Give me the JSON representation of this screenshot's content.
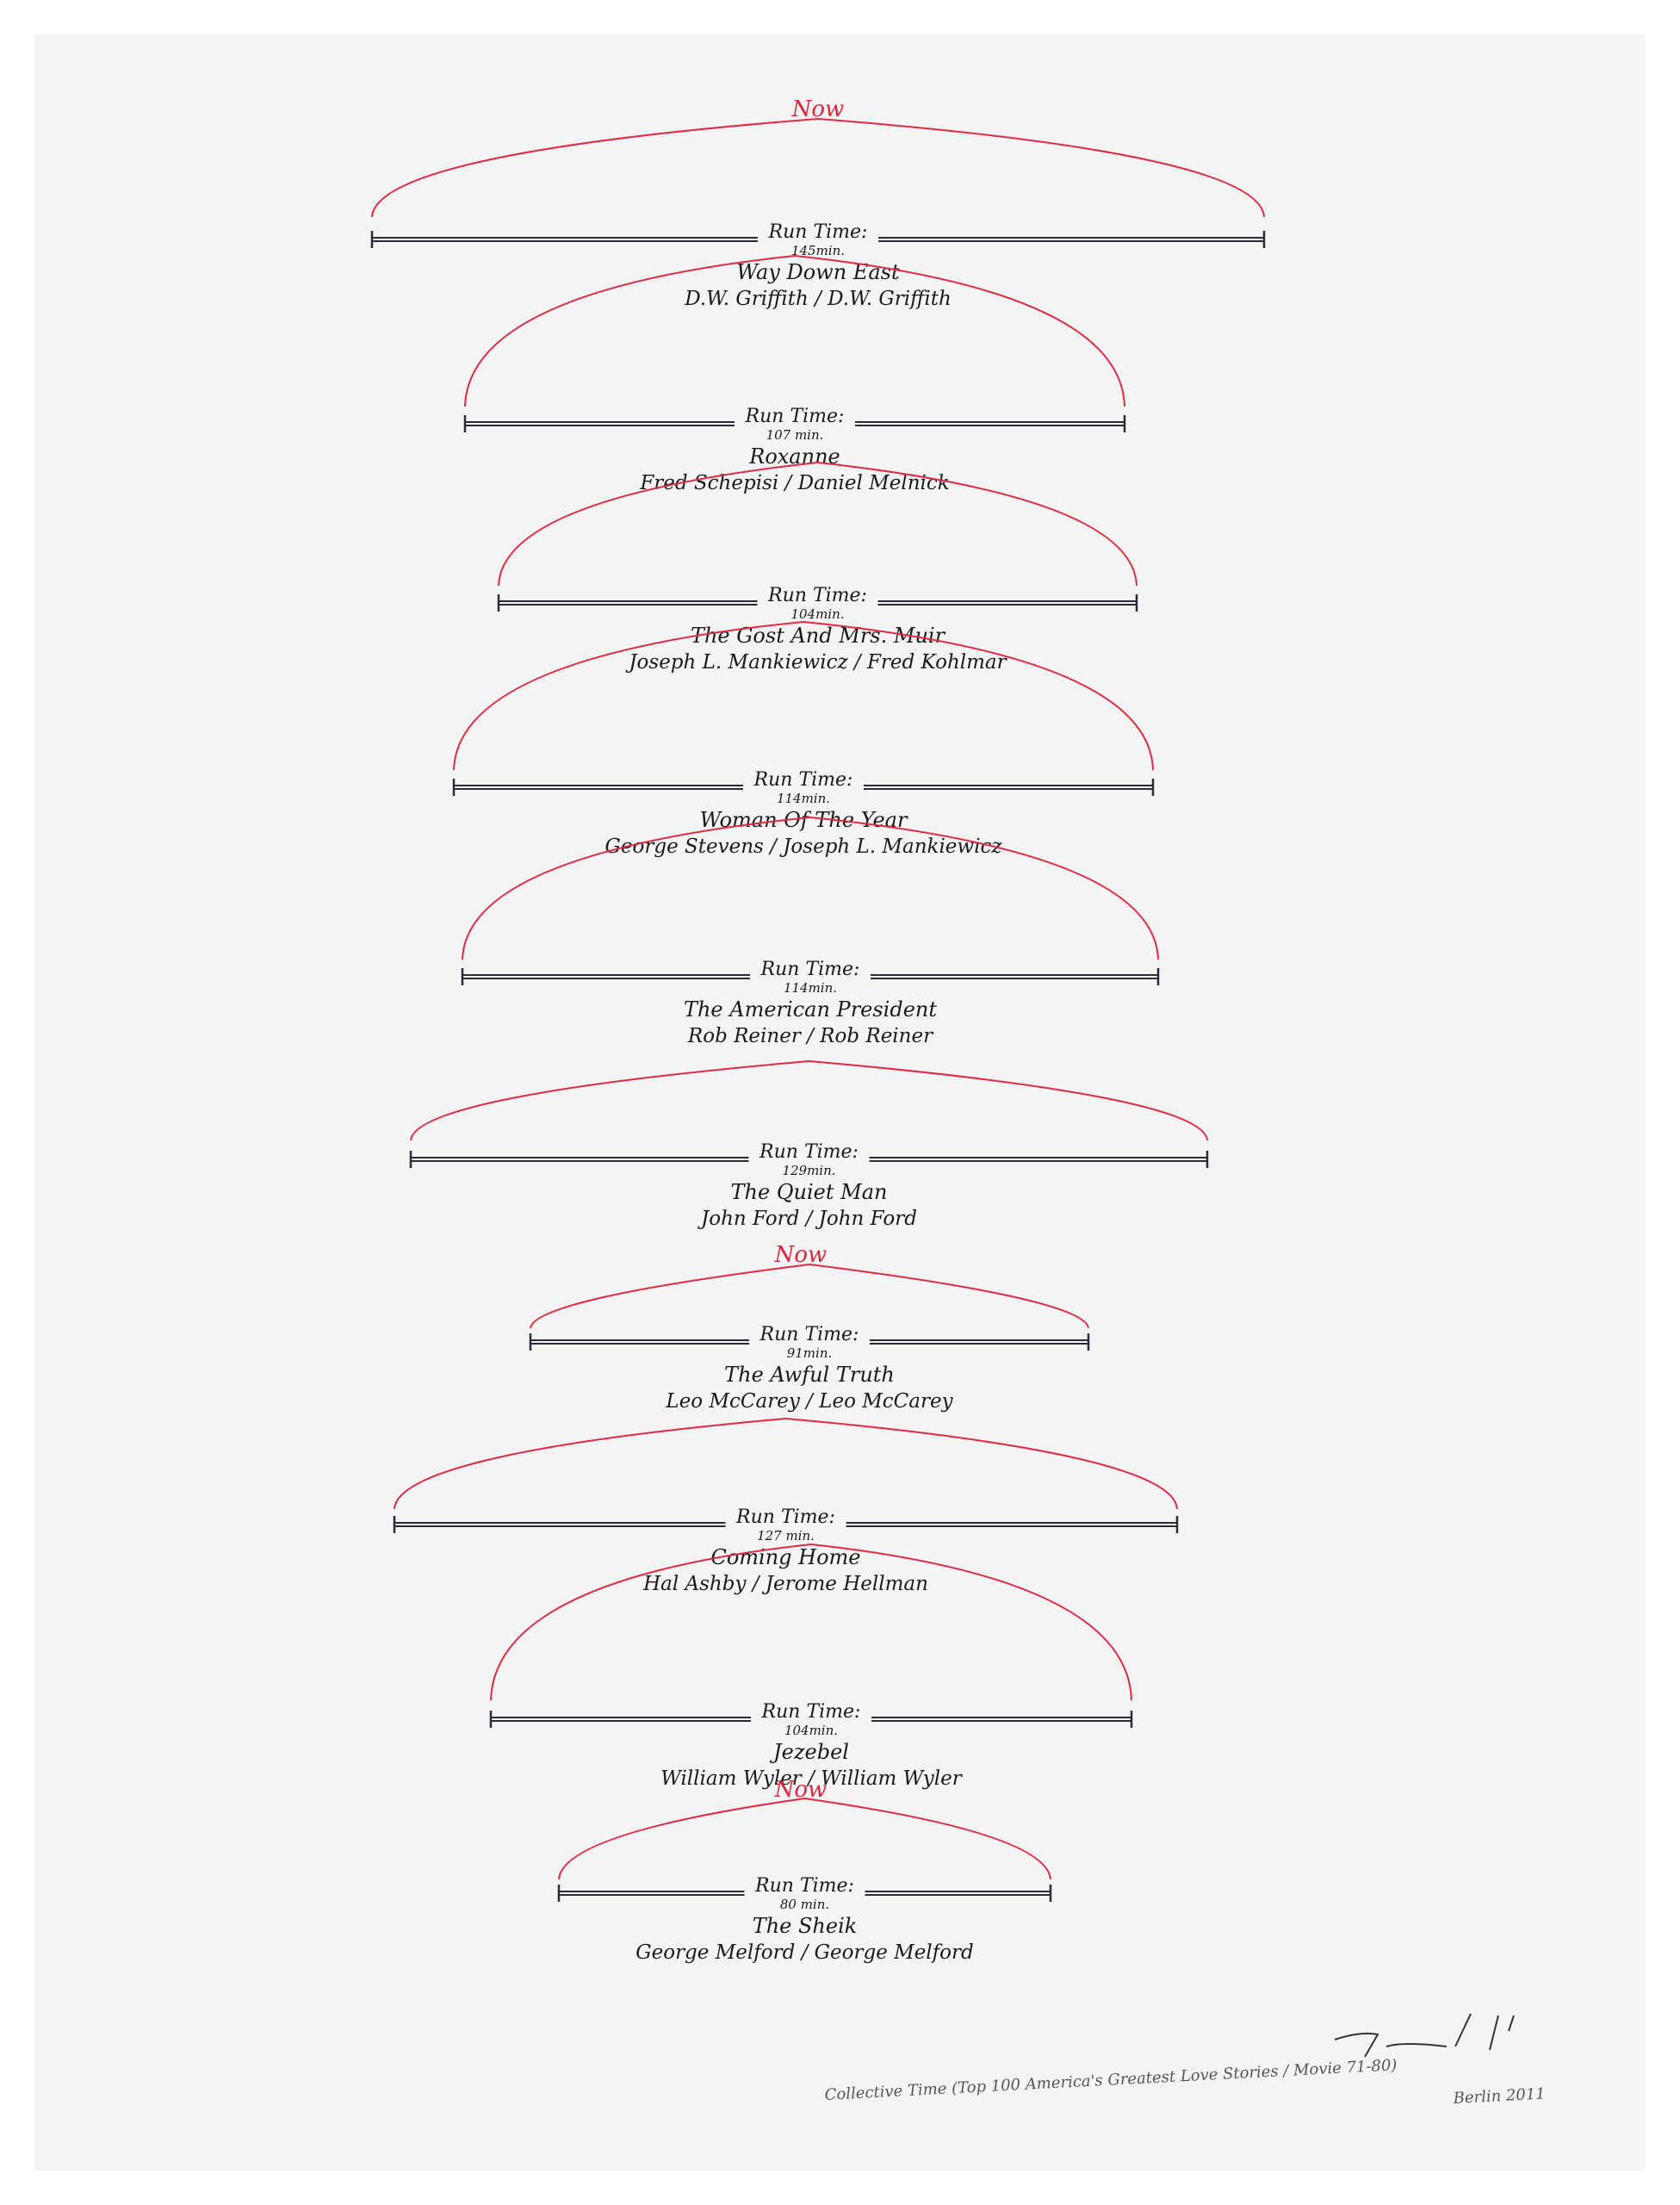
{
  "run_time_label": "Run Time:",
  "now_label": "Now",
  "timelines": [
    {
      "duration": "145min.",
      "title": "Way Down East",
      "credits": "D.W. Griffith / D.W. Griffith"
    },
    {
      "duration": "107 min.",
      "title": "Roxanne",
      "credits": "Fred Schepisi / Daniel Melnick"
    },
    {
      "duration": "104min.",
      "title": "The Gost And Mrs. Muir",
      "credits": "Joseph L. Mankiewicz / Fred Kohlmar"
    },
    {
      "duration": "114min.",
      "title": "Woman Of The Year",
      "credits": "George Stevens / Joseph L. Mankiewicz"
    },
    {
      "duration": "114min.",
      "title": "The American President",
      "credits": "Rob Reiner / Rob Reiner"
    },
    {
      "duration": "129min.",
      "title": "The Quiet Man",
      "credits": "John Ford / John Ford"
    },
    {
      "duration": "91min.",
      "title": "The Awful Truth",
      "credits": "Leo McCarey / Leo McCarey"
    },
    {
      "duration": "127 min.",
      "title": "Coming Home",
      "credits": "Hal Ashby / Jerome Hellman"
    },
    {
      "duration": "104min.",
      "title": "Jezebel",
      "credits": "William Wyler / William Wyler"
    },
    {
      "duration": "80 min.",
      "title": "The Sheik",
      "credits": "George Melford / George Melford"
    }
  ],
  "caption": "Collective Time (Top 100 America's Greatest Love Stories / Movie 71-80)",
  "place_date": "Berlin 2011",
  "colors": {
    "arc": "#e02a41",
    "bar": "#2a2a3a",
    "paper": "#f4f4f4"
  }
}
